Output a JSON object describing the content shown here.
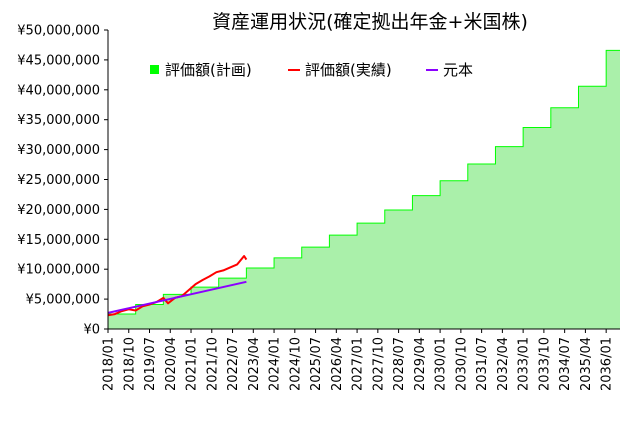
{
  "chart_data": {
    "type": "area",
    "title": "資産運用状況(確定拠出年金+米国株)",
    "ylim": [
      0,
      50000000
    ],
    "y_ticks": [
      "¥0",
      "¥5,000,000",
      "¥10,000,000",
      "¥15,000,000",
      "¥20,000,000",
      "¥25,000,000",
      "¥30,000,000",
      "¥35,000,000",
      "¥40,000,000",
      "¥45,000,000",
      "¥50,000,000"
    ],
    "x_ticks": [
      "2018/01",
      "2018/10",
      "2019/07",
      "2020/04",
      "2021/01",
      "2021/10",
      "2022/07",
      "2023/04",
      "2024/01",
      "2024/10",
      "2025/07",
      "2026/04",
      "2027/01",
      "2027/10",
      "2028/07",
      "2029/04",
      "2030/01",
      "2030/10",
      "2031/07",
      "2032/04",
      "2033/01",
      "2033/10",
      "2034/07",
      "2035/04",
      "2036/01"
    ],
    "grid": false,
    "legend_position": "top-left",
    "series": [
      {
        "name": "評価額(計画)",
        "kind": "step-area",
        "color": "#00ff00",
        "fill": "#aaf0aa",
        "x": [
          "2018/01",
          "2019/01",
          "2020/01",
          "2021/01",
          "2022/01",
          "2023/01",
          "2024/01",
          "2025/01",
          "2026/01",
          "2027/01",
          "2028/01",
          "2029/01",
          "2030/01",
          "2031/01",
          "2032/01",
          "2033/01",
          "2034/01",
          "2035/01",
          "2036/01",
          "2036/07"
        ],
        "values": [
          2500000,
          4100000,
          5800000,
          7000000,
          8500000,
          10200000,
          11900000,
          13700000,
          15700000,
          17700000,
          19900000,
          22300000,
          24800000,
          27600000,
          30500000,
          33700000,
          37000000,
          40600000,
          46600000,
          46600000
        ]
      },
      {
        "name": "評価額(実績)",
        "kind": "line",
        "color": "#ff0000",
        "x": [
          "2018/01",
          "2018/04",
          "2018/07",
          "2018/10",
          "2019/01",
          "2019/04",
          "2019/07",
          "2019/10",
          "2020/01",
          "2020/03",
          "2020/06",
          "2020/09",
          "2020/12",
          "2021/03",
          "2021/06",
          "2021/09",
          "2021/12",
          "2022/03",
          "2022/06",
          "2022/09",
          "2022/12",
          "2023/01"
        ],
        "values": [
          2300000,
          2500000,
          3000000,
          3300000,
          3100000,
          3800000,
          4100000,
          4500000,
          5200000,
          4300000,
          5200000,
          5500000,
          6500000,
          7500000,
          8200000,
          8800000,
          9500000,
          9800000,
          10300000,
          10800000,
          12200000,
          11600000
        ]
      },
      {
        "name": "元本",
        "kind": "line",
        "color": "#8b00ff",
        "x": [
          "2018/01",
          "2023/01"
        ],
        "values": [
          2700000,
          7900000
        ]
      }
    ]
  }
}
